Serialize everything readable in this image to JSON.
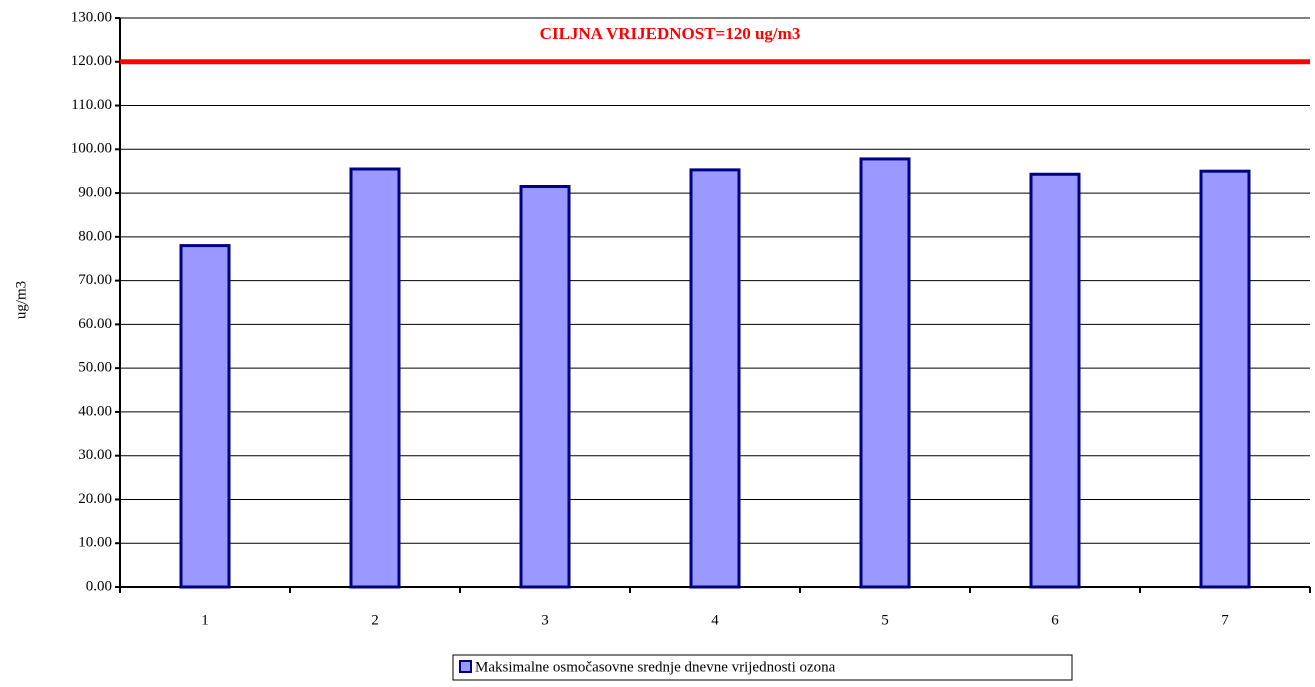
{
  "chart_data": {
    "type": "bar",
    "y_label": "ug/m3",
    "categories": [
      "1",
      "2",
      "3",
      "4",
      "5",
      "6",
      "7"
    ],
    "series": [
      {
        "name": "Maksimalne osmočasovne srednje dnevne vrijednosti ozona",
        "color": "#9999ff",
        "edge_color": "#000080",
        "values": [
          78.0,
          95.5,
          91.5,
          95.3,
          97.8,
          94.3,
          95.0
        ]
      }
    ],
    "ylim": [
      0,
      130
    ],
    "yticks": [
      {
        "value": 0,
        "label": "0.00"
      },
      {
        "value": 10,
        "label": "10.00"
      },
      {
        "value": 20,
        "label": "20.00"
      },
      {
        "value": 30,
        "label": "30.00"
      },
      {
        "value": 40,
        "label": "40.00"
      },
      {
        "value": 50,
        "label": "50.00"
      },
      {
        "value": 60,
        "label": "60.00"
      },
      {
        "value": 70,
        "label": "70.00"
      },
      {
        "value": 80,
        "label": "80.00"
      },
      {
        "value": 90,
        "label": "90.00"
      },
      {
        "value": 100,
        "label": "100.00"
      },
      {
        "value": 110,
        "label": "110.00"
      },
      {
        "value": 120,
        "label": "120.00"
      },
      {
        "value": 130,
        "label": "130.00"
      }
    ],
    "grid": true,
    "reference_line": {
      "value": 120,
      "label": "CILJNA VRIJEDNOST=120 ug/m3",
      "color": "#ff0000"
    },
    "legend": "bottom"
  }
}
